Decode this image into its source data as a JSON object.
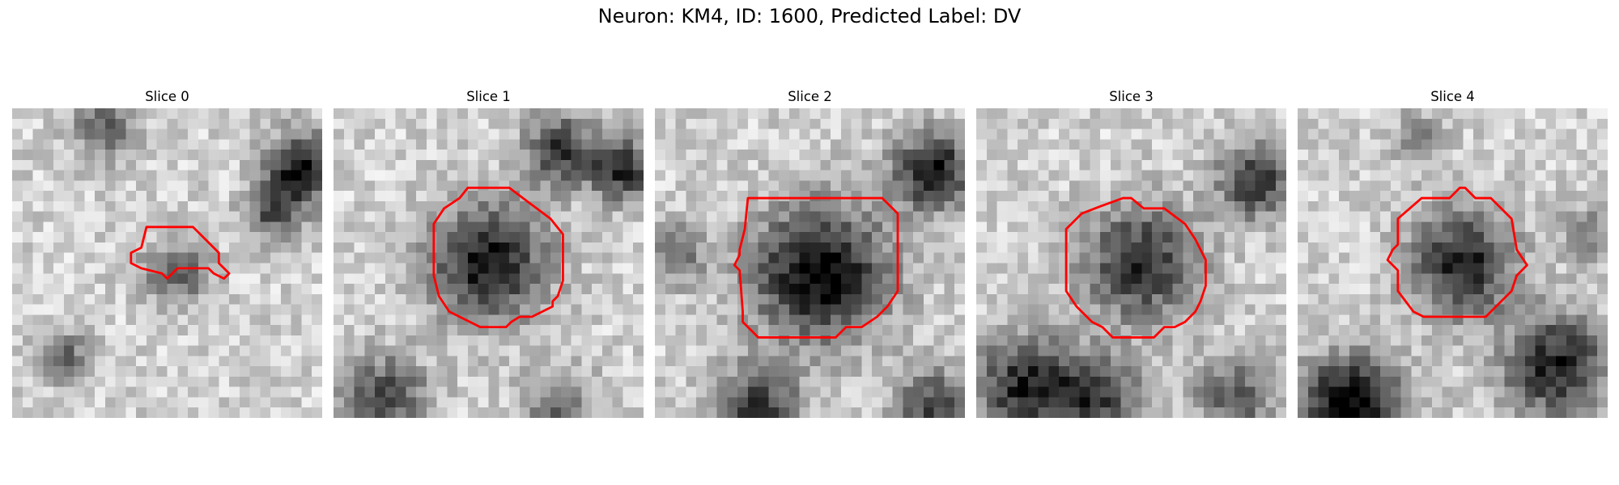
{
  "figure": {
    "title": "Neuron: KM4, ID: 1600, Predicted Label: DV",
    "contour_color": "#ff0000"
  },
  "panels": [
    {
      "title": "Slice 0",
      "grid_size": 30,
      "seed": 11,
      "blobs": [
        {
          "cx": 16,
          "cy": 16,
          "r": 3.2,
          "d": 0.45
        },
        {
          "cx": 28,
          "cy": 6,
          "r": 3.5,
          "d": 0.75
        },
        {
          "cx": 25,
          "cy": 10,
          "r": 2.5,
          "d": 0.5
        },
        {
          "cx": 9,
          "cy": 2,
          "r": 3,
          "d": 0.45
        },
        {
          "cx": 5,
          "cy": 24,
          "r": 2.5,
          "d": 0.45
        }
      ],
      "contour": [
        [
          13,
          11.5
        ],
        [
          17.5,
          11.5
        ],
        [
          20,
          14
        ],
        [
          20,
          15
        ],
        [
          21,
          16
        ],
        [
          20.5,
          16.5
        ],
        [
          19.5,
          16
        ],
        [
          19,
          15.5
        ],
        [
          16,
          15.5
        ],
        [
          15,
          16.5
        ],
        [
          14.5,
          16
        ],
        [
          12.5,
          15.5
        ],
        [
          11.5,
          15
        ],
        [
          11.5,
          14
        ],
        [
          12.5,
          13.5
        ]
      ]
    },
    {
      "title": "Slice 1",
      "grid_size": 30,
      "seed": 23,
      "blobs": [
        {
          "cx": 15,
          "cy": 15,
          "r": 5.5,
          "d": 0.75
        },
        {
          "cx": 22,
          "cy": 4,
          "r": 3.5,
          "d": 0.6
        },
        {
          "cx": 28,
          "cy": 6,
          "r": 3,
          "d": 0.65
        },
        {
          "cx": 5,
          "cy": 28,
          "r": 4,
          "d": 0.55
        },
        {
          "cx": 22,
          "cy": 29,
          "r": 3.5,
          "d": 0.4
        }
      ],
      "contour": [
        [
          13,
          7.7
        ],
        [
          17,
          7.7
        ],
        [
          19,
          9.2
        ],
        [
          21,
          10.7
        ],
        [
          22.2,
          12.2
        ],
        [
          22.2,
          16.7
        ],
        [
          21.7,
          18.2
        ],
        [
          21.2,
          18.7
        ],
        [
          21.2,
          19.2
        ],
        [
          20.2,
          19.7
        ],
        [
          19.2,
          20.2
        ],
        [
          18,
          20.2
        ],
        [
          17.2,
          20.7
        ],
        [
          16.7,
          21.2
        ],
        [
          14.2,
          21.2
        ],
        [
          13.2,
          20.7
        ],
        [
          11.2,
          19.7
        ],
        [
          10.2,
          18.2
        ],
        [
          9.7,
          16.2
        ],
        [
          9.7,
          11.2
        ],
        [
          10.7,
          9.7
        ],
        [
          12.2,
          8.7
        ]
      ]
    },
    {
      "title": "Slice 2",
      "grid_size": 30,
      "seed": 37,
      "blobs": [
        {
          "cx": 16,
          "cy": 16,
          "r": 6.5,
          "d": 0.82
        },
        {
          "cx": 27,
          "cy": 6,
          "r": 3.8,
          "d": 0.75
        },
        {
          "cx": 10,
          "cy": 29,
          "r": 4,
          "d": 0.6
        },
        {
          "cx": 27,
          "cy": 29,
          "r": 3.8,
          "d": 0.55
        },
        {
          "cx": 2,
          "cy": 14,
          "r": 3,
          "d": 0.4
        }
      ],
      "contour": [
        [
          9,
          8.7
        ],
        [
          22,
          8.7
        ],
        [
          23.5,
          10.2
        ],
        [
          23.5,
          17.7
        ],
        [
          22.5,
          19.2
        ],
        [
          21.5,
          20.2
        ],
        [
          20,
          21.2
        ],
        [
          18.5,
          21.2
        ],
        [
          17.5,
          22.2
        ],
        [
          10,
          22.2
        ],
        [
          9,
          21.2
        ],
        [
          8.5,
          20.7
        ],
        [
          8.5,
          19.7
        ],
        [
          8.2,
          15.7
        ],
        [
          7.7,
          15.2
        ],
        [
          8.2,
          14.2
        ],
        [
          8.2,
          13.7
        ],
        [
          8.7,
          11.7
        ]
      ]
    },
    {
      "title": "Slice 3",
      "grid_size": 30,
      "seed": 53,
      "blobs": [
        {
          "cx": 16,
          "cy": 15,
          "r": 5.5,
          "d": 0.65
        },
        {
          "cx": 27,
          "cy": 7,
          "r": 3.5,
          "d": 0.65
        },
        {
          "cx": 5,
          "cy": 27,
          "r": 5,
          "d": 0.7
        },
        {
          "cx": 12,
          "cy": 28,
          "r": 4,
          "d": 0.55
        },
        {
          "cx": 25,
          "cy": 28,
          "r": 4,
          "d": 0.45
        }
      ],
      "contour": [
        [
          12,
          9.5
        ],
        [
          14.2,
          8.7
        ],
        [
          15,
          8.7
        ],
        [
          16.2,
          9.7
        ],
        [
          18.2,
          9.7
        ],
        [
          20.2,
          11.2
        ],
        [
          21.2,
          12.7
        ],
        [
          22.2,
          14.7
        ],
        [
          22.2,
          17.2
        ],
        [
          21.7,
          18.7
        ],
        [
          21.2,
          19.7
        ],
        [
          20.2,
          20.7
        ],
        [
          19.2,
          21.2
        ],
        [
          18.2,
          21.2
        ],
        [
          17.2,
          22.2
        ],
        [
          13.2,
          22.2
        ],
        [
          12.2,
          21.2
        ],
        [
          11.2,
          20.7
        ],
        [
          10.2,
          19.7
        ],
        [
          9.7,
          19.2
        ],
        [
          8.7,
          17.7
        ],
        [
          8.7,
          11.7
        ],
        [
          10.2,
          10.2
        ]
      ]
    },
    {
      "title": "Slice 4",
      "grid_size": 30,
      "seed": 71,
      "blobs": [
        {
          "cx": 16,
          "cy": 15,
          "r": 5,
          "d": 0.7
        },
        {
          "cx": 5,
          "cy": 29,
          "r": 5,
          "d": 0.85
        },
        {
          "cx": 25,
          "cy": 25,
          "r": 5,
          "d": 0.7
        },
        {
          "cx": 12,
          "cy": 3,
          "r": 2.5,
          "d": 0.35
        },
        {
          "cx": 28,
          "cy": 12,
          "r": 2.5,
          "d": 0.35
        }
      ],
      "contour": [
        [
          12,
          8.7
        ],
        [
          14.7,
          8.7
        ],
        [
          15.7,
          7.7
        ],
        [
          16.2,
          7.7
        ],
        [
          17.2,
          8.7
        ],
        [
          18.7,
          8.7
        ],
        [
          20.7,
          10.7
        ],
        [
          21.2,
          13.7
        ],
        [
          22.2,
          15.2
        ],
        [
          21.2,
          16.2
        ],
        [
          20.7,
          17.7
        ],
        [
          19.7,
          18.7
        ],
        [
          18.7,
          19.7
        ],
        [
          18.2,
          20.2
        ],
        [
          12.2,
          20.2
        ],
        [
          11.2,
          19.7
        ],
        [
          9.7,
          17.7
        ],
        [
          9.7,
          15.7
        ],
        [
          8.7,
          14.7
        ],
        [
          9.2,
          13.7
        ],
        [
          9.7,
          13.2
        ],
        [
          9.7,
          10.7
        ]
      ]
    }
  ]
}
